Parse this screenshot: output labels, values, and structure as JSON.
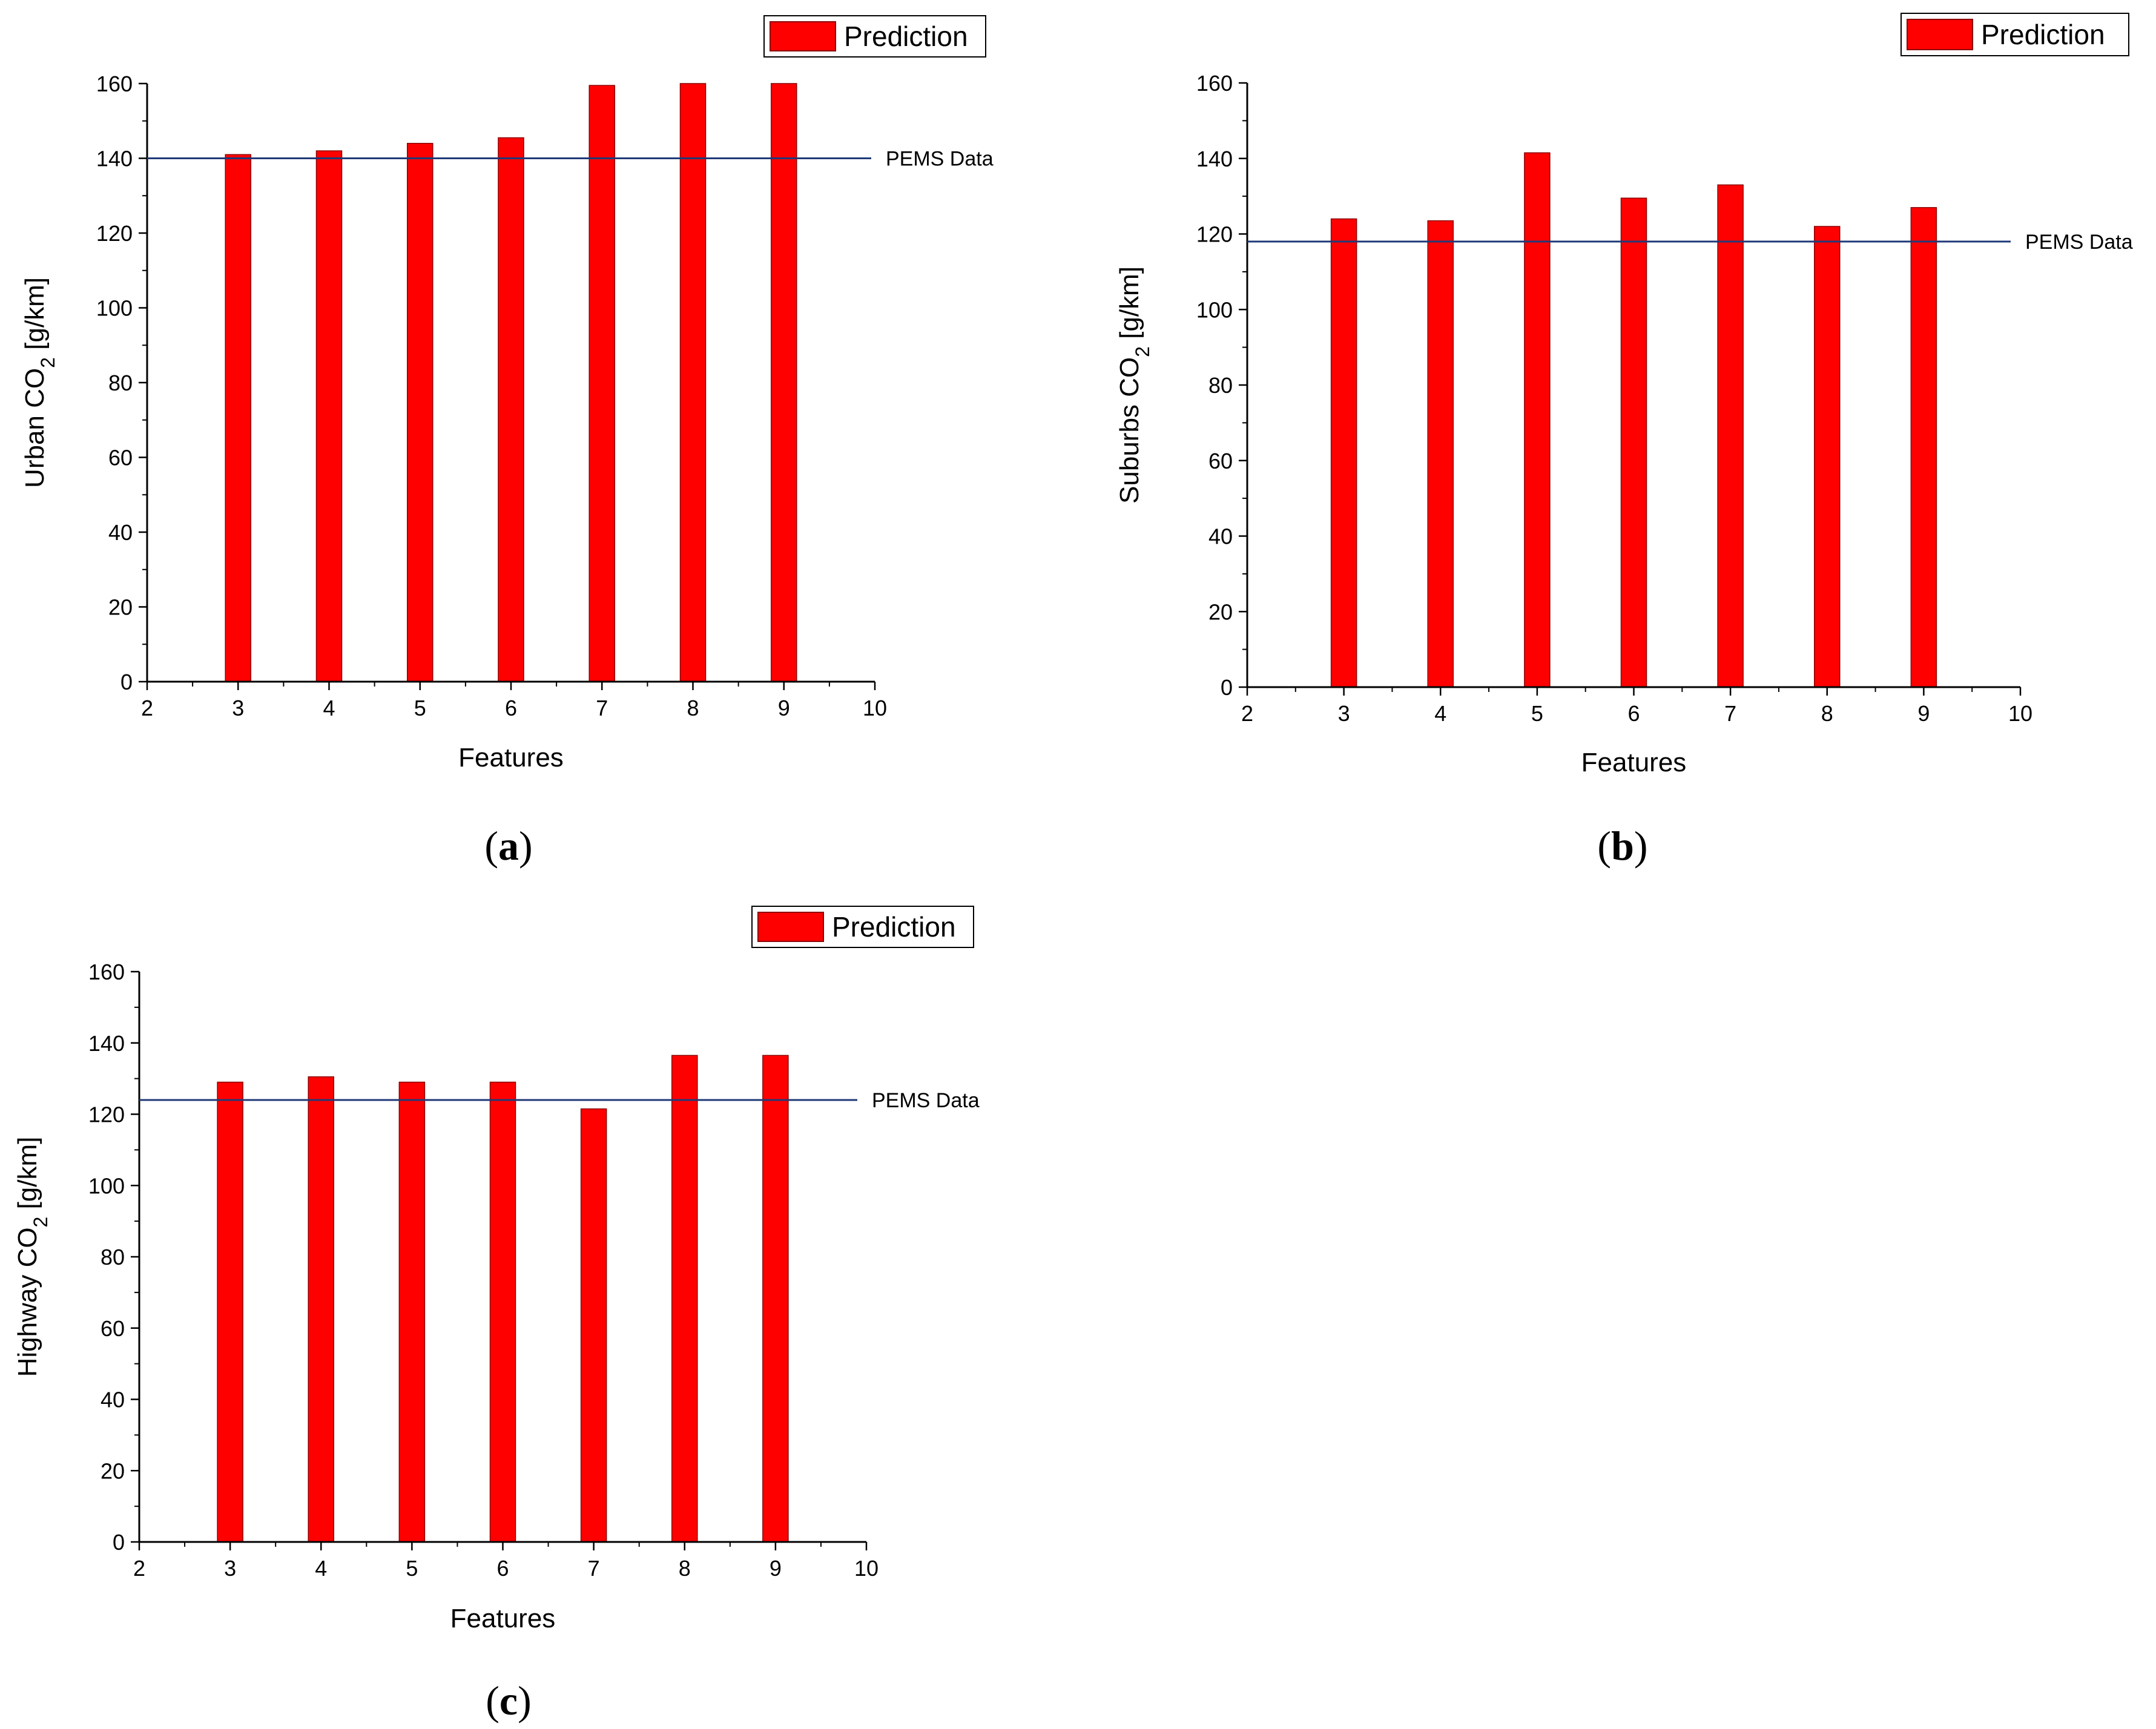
{
  "colors": {
    "bar_fill": "#ff0000",
    "bar_stroke": "#8b0000",
    "reference_line": "#1f3a78",
    "axis": "#000000"
  },
  "chart_data": [
    {
      "type": "bar",
      "panel": "a",
      "legend": "Prediction",
      "xlabel": "Features",
      "ylabel_main": "Urban CO",
      "ylabel_sub": "2",
      "ylabel_unit": " [g/km]",
      "xlim": [
        2,
        10
      ],
      "ylim": [
        0,
        160
      ],
      "xticks": [
        2,
        3,
        4,
        5,
        6,
        7,
        8,
        9,
        10
      ],
      "yticks": [
        0,
        20,
        40,
        60,
        80,
        100,
        120,
        140,
        160
      ],
      "x": [
        3,
        4,
        5,
        6,
        7,
        8,
        9
      ],
      "values": [
        141,
        142,
        144,
        145.5,
        159.5,
        160,
        160
      ],
      "reference": {
        "label": "PEMS Data",
        "value": 140
      }
    },
    {
      "type": "bar",
      "panel": "b",
      "legend": "Prediction",
      "xlabel": "Features",
      "ylabel_main": "Suburbs CO",
      "ylabel_sub": "2",
      "ylabel_unit": " [g/km]",
      "xlim": [
        2,
        10
      ],
      "ylim": [
        0,
        160
      ],
      "xticks": [
        2,
        3,
        4,
        5,
        6,
        7,
        8,
        9,
        10
      ],
      "yticks": [
        0,
        20,
        40,
        60,
        80,
        100,
        120,
        140,
        160
      ],
      "x": [
        3,
        4,
        5,
        6,
        7,
        8,
        9
      ],
      "values": [
        124,
        123.5,
        141.5,
        129.5,
        133,
        122,
        127
      ],
      "reference": {
        "label": "PEMS Data",
        "value": 118
      }
    },
    {
      "type": "bar",
      "panel": "c",
      "legend": "Prediction",
      "xlabel": "Features",
      "ylabel_main": "Highway CO",
      "ylabel_sub": "2",
      "ylabel_unit": " [g/km]",
      "xlim": [
        2,
        10
      ],
      "ylim": [
        0,
        160
      ],
      "xticks": [
        2,
        3,
        4,
        5,
        6,
        7,
        8,
        9,
        10
      ],
      "yticks": [
        0,
        20,
        40,
        60,
        80,
        100,
        120,
        140,
        160
      ],
      "x": [
        3,
        4,
        5,
        6,
        7,
        8,
        9
      ],
      "values": [
        129,
        130.5,
        129,
        129,
        121.5,
        136.5,
        136.5
      ],
      "reference": {
        "label": "PEMS Data",
        "value": 124
      }
    }
  ]
}
